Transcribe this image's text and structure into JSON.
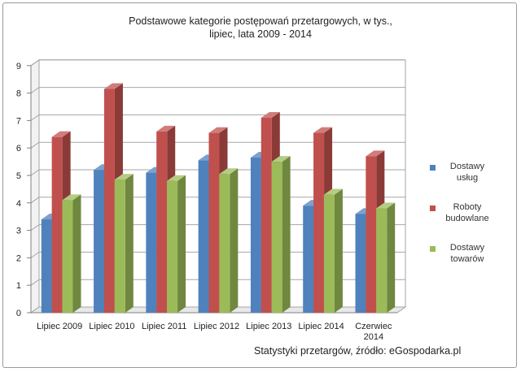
{
  "title_line1": "Podstawowe kategorie postępowań przetargowych, w tys.,",
  "title_line2": "lipiec,  lata 2009 - 2014",
  "source": "Statystyki przetargów, źródło: eGospodarka.pl",
  "chart_data": {
    "type": "bar",
    "title": "Podstawowe kategorie postępowań przetargowych, w tys., lipiec,  lata 2009 - 2014",
    "categories": [
      "Lipiec 2009",
      "Lipiec 2010",
      "Lipiec 2011",
      "Lipiec 2012",
      "Lipiec 2013",
      "Lipiec  2014",
      "Czerwiec 2014"
    ],
    "series": [
      {
        "name": "Dostawy usług",
        "legend_lines": [
          "Dostawy",
          "usług"
        ],
        "color": "#4f81bd",
        "values": [
          3.4,
          5.2,
          5.1,
          5.55,
          5.65,
          3.9,
          3.6
        ]
      },
      {
        "name": "Roboty budowlane",
        "legend_lines": [
          "Roboty",
          "budowlane"
        ],
        "color": "#c0504d",
        "values": [
          6.4,
          8.15,
          6.6,
          6.55,
          7.1,
          6.55,
          5.7
        ]
      },
      {
        "name": "Dostawy towarów",
        "legend_lines": [
          "Dostawy",
          "towarów"
        ],
        "color": "#9bbb59",
        "values": [
          4.1,
          4.85,
          4.8,
          5.05,
          5.5,
          4.3,
          3.8
        ]
      }
    ],
    "yticks": [
      0,
      1,
      2,
      3,
      4,
      5,
      6,
      7,
      8,
      9
    ],
    "ylim": [
      0,
      9
    ],
    "grid": true,
    "legend_position": "right"
  }
}
